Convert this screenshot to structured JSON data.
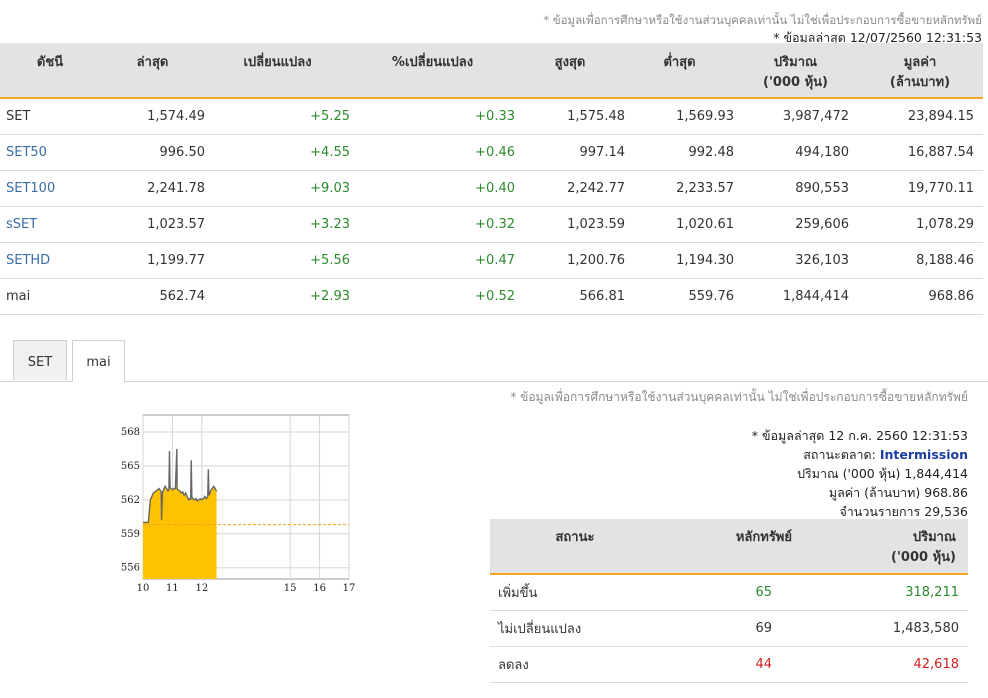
{
  "header": {
    "disclaimer": "* ข้อมูลเพื่อการศึกษาหรือใช้งานส่วนบุคคลเท่านั้น ไม่ใช่เพื่อประกอบการซื้อขายหลักทรัพย์",
    "last_update": "* ข้อมูลล่าสุด 12/07/2560 12:31:53"
  },
  "index_table": {
    "columns": [
      "ดัชนี",
      "ล่าสุด",
      "เปลี่ยนแปลง",
      "%เปลี่ยนแปลง",
      "สูงสุด",
      "ต่ำสุด",
      "ปริมาณ",
      "มูลค่า"
    ],
    "columns_sub": [
      "",
      "",
      "",
      "",
      "",
      "",
      "('000 หุ้น)",
      "(ล้านบาท)"
    ],
    "rows": [
      {
        "name": "SET",
        "link": false,
        "last": "1,574.49",
        "change": "+5.25",
        "pct": "+0.33",
        "high": "1,575.48",
        "low": "1,569.93",
        "volume": "3,987,472",
        "value": "23,894.15"
      },
      {
        "name": "SET50",
        "link": true,
        "last": "996.50",
        "change": "+4.55",
        "pct": "+0.46",
        "high": "997.14",
        "low": "992.48",
        "volume": "494,180",
        "value": "16,887.54"
      },
      {
        "name": "SET100",
        "link": true,
        "last": "2,241.78",
        "change": "+9.03",
        "pct": "+0.40",
        "high": "2,242.77",
        "low": "2,233.57",
        "volume": "890,553",
        "value": "19,770.11"
      },
      {
        "name": "sSET",
        "link": true,
        "last": "1,023.57",
        "change": "+3.23",
        "pct": "+0.32",
        "high": "1,023.59",
        "low": "1,020.61",
        "volume": "259,606",
        "value": "1,078.29"
      },
      {
        "name": "SETHD",
        "link": true,
        "last": "1,199.77",
        "change": "+5.56",
        "pct": "+0.47",
        "high": "1,200.76",
        "low": "1,194.30",
        "volume": "326,103",
        "value": "8,188.46"
      },
      {
        "name": "mai",
        "link": false,
        "last": "562.74",
        "change": "+2.93",
        "pct": "+0.52",
        "high": "566.81",
        "low": "559.76",
        "volume": "1,844,414",
        "value": "968.86"
      }
    ]
  },
  "tabs": [
    {
      "label": "SET",
      "active": false
    },
    {
      "label": "mai",
      "active": true
    }
  ],
  "market_info": {
    "disclaimer": "* ข้อมูลเพื่อการศึกษาหรือใช้งานส่วนบุคคลเท่านั้น ไม่ใช่เพื่อประกอบการซื้อขายหลักทรัพย์",
    "last_update": "* ข้อมูลล่าสุด 12 ก.ค. 2560 12:31:53",
    "status_label": "สถานะตลาด:",
    "status_value": "Intermission",
    "volume_label": "ปริมาณ ('000 หุ้น)",
    "volume_value": "1,844,414",
    "value_label": "มูลค่า (ล้านบาท)",
    "value_value": "968.86",
    "trades_label": "จำนวนรายการ",
    "trades_value": "29,536"
  },
  "status_table": {
    "columns": [
      "สถานะ",
      "หลักทรัพย์",
      "ปริมาณ"
    ],
    "columns_sub": [
      "",
      "",
      "('000 หุ้น)"
    ],
    "rows": [
      {
        "label": "เพิ่มขึ้น",
        "count": "65",
        "volume": "318,211",
        "color": "#2d8a2d"
      },
      {
        "label": "ไม่เปลี่ยนแปลง",
        "count": "69",
        "volume": "1,483,580",
        "color": "#333333"
      },
      {
        "label": "ลดลง",
        "count": "44",
        "volume": "42,618",
        "color": "#d21f1f"
      }
    ]
  },
  "chart_data": {
    "type": "area",
    "x_ticks": [
      "10",
      "11",
      "12",
      "15",
      "16",
      "17"
    ],
    "y_ticks": [
      "556",
      "559",
      "562",
      "565",
      "568"
    ],
    "ylim": [
      555,
      569.5
    ],
    "xlim": [
      10,
      17
    ],
    "fill_color": "#ffc200",
    "line_color": "#666666",
    "prev_close": 559.81,
    "x": [
      10.0,
      10.18,
      10.25,
      10.35,
      10.45,
      10.55,
      10.62,
      10.63,
      10.66,
      10.7,
      10.75,
      10.8,
      10.85,
      10.88,
      10.9,
      10.92,
      10.95,
      11.0,
      11.05,
      11.1,
      11.15,
      11.16,
      11.18,
      11.25,
      11.3,
      11.35,
      11.4,
      11.45,
      11.5,
      11.55,
      11.6,
      11.62,
      11.64,
      11.66,
      11.7,
      11.75,
      11.8,
      11.85,
      11.9,
      11.95,
      12.0,
      12.05,
      12.1,
      12.15,
      12.2,
      12.22,
      12.24,
      12.26,
      12.3,
      12.35,
      12.4,
      12.45,
      12.5
    ],
    "y": [
      560.0,
      560.0,
      562.0,
      562.6,
      562.8,
      563.0,
      562.7,
      560.2,
      562.6,
      562.9,
      563.2,
      563.0,
      562.8,
      562.9,
      566.3,
      563.1,
      563.0,
      562.9,
      563.0,
      563.0,
      566.5,
      563.0,
      562.9,
      562.8,
      562.6,
      562.7,
      562.4,
      562.6,
      562.3,
      562.0,
      562.1,
      562.0,
      565.5,
      562.2,
      562.1,
      562.0,
      562.1,
      561.9,
      562.0,
      562.1,
      562.0,
      562.1,
      562.3,
      562.1,
      562.3,
      564.7,
      562.4,
      562.5,
      562.8,
      563.0,
      563.2,
      563.0,
      562.74
    ]
  }
}
